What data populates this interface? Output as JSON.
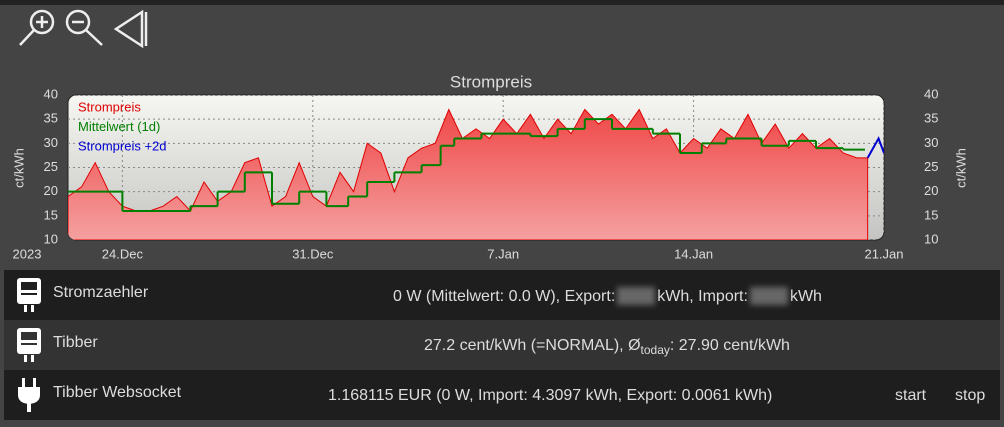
{
  "chart_data": {
    "type": "line",
    "title": "Strompreis",
    "y_label": "ct/kWh",
    "y2_label": "ct/kWh",
    "year_label": "2023",
    "xlim": [
      0,
      30
    ],
    "xticks": [
      {
        "value": 2,
        "label": "24.Dec"
      },
      {
        "value": 9,
        "label": "31.Dec"
      },
      {
        "value": 16,
        "label": "7.Jan"
      },
      {
        "value": 23,
        "label": "14.Jan"
      },
      {
        "value": 30,
        "label": "21.Jan"
      }
    ],
    "ylim": [
      10,
      40
    ],
    "yticks": [
      10,
      15,
      20,
      25,
      30,
      35,
      40
    ],
    "y2lim": [
      10,
      40
    ],
    "y2ticks": [
      10,
      15,
      20,
      25,
      30,
      35,
      40
    ],
    "grid": true,
    "legend": "upper left",
    "series": [
      {
        "name": "Strompreis",
        "color": "#e00000",
        "fill": true,
        "x": [
          0,
          0.5,
          1,
          1.5,
          2,
          2.5,
          3,
          3.5,
          4,
          4.5,
          5,
          5.5,
          6,
          6.5,
          7,
          7.5,
          8,
          8.5,
          9,
          9.5,
          10,
          10.5,
          11,
          11.5,
          12,
          12.5,
          13,
          13.5,
          14,
          14.5,
          15,
          15.5,
          16,
          16.5,
          17,
          17.5,
          18,
          18.5,
          19,
          19.5,
          20,
          20.5,
          21,
          21.5,
          22,
          22.5,
          23,
          23.5,
          24,
          24.5,
          25,
          25.5,
          26,
          26.5,
          27,
          27.5,
          28,
          28.5,
          29,
          29.4
        ],
        "values": [
          19,
          21,
          26,
          20,
          17,
          16,
          16,
          17,
          19,
          16,
          22,
          18,
          20,
          26,
          27,
          17,
          19,
          26,
          19,
          17,
          24,
          20,
          30,
          28,
          20,
          27,
          29,
          30,
          37,
          31,
          33,
          31,
          35,
          32,
          36,
          31,
          35,
          32,
          37,
          34,
          36,
          33,
          37,
          31,
          33,
          28,
          31,
          29,
          33,
          31,
          36,
          30,
          34,
          29,
          32,
          29,
          31,
          28,
          27,
          27
        ]
      },
      {
        "name": "Mittelwert (1d)",
        "color": "#008000",
        "step": true,
        "x": [
          0,
          2,
          4.5,
          5.5,
          6.5,
          7.5,
          8.5,
          9.5,
          10.3,
          11,
          12,
          13,
          13.7,
          14.2,
          15.2,
          17,
          18,
          19,
          20,
          21.5,
          22.5,
          23.3,
          24.2,
          25.5,
          26.5,
          27.5,
          28.5,
          29.3
        ],
        "values": [
          20,
          16,
          17,
          20,
          24,
          17.5,
          20,
          17,
          19,
          22,
          24,
          25.5,
          29.5,
          31,
          32,
          31.5,
          33,
          35,
          33,
          32,
          28,
          30,
          31,
          29.5,
          30.5,
          29,
          28.7,
          28.7
        ]
      },
      {
        "name": "Strompreis +2d",
        "color": "#0000d0",
        "x": [
          29.4,
          29.6,
          29.8,
          30
        ],
        "values": [
          27,
          29,
          31,
          28
        ]
      }
    ]
  },
  "devices": [
    {
      "name": "Stromzaehler",
      "state": [
        "0 W (Mittelwert: 0.0 W), Export:",
        "kWh, Import:",
        "kWh"
      ]
    },
    {
      "name": "Tibber",
      "state": [
        "27.2 cent/kWh (=NORMAL), Ø",
        "today",
        ": 27.90 cent/kWh"
      ]
    },
    {
      "name": "Tibber Websocket",
      "state": [
        "1.168115 EUR (0 W, Import: 4.3097 kWh, Export: 0.0061 kWh)"
      ],
      "commands": [
        "start",
        "stop"
      ]
    }
  ]
}
